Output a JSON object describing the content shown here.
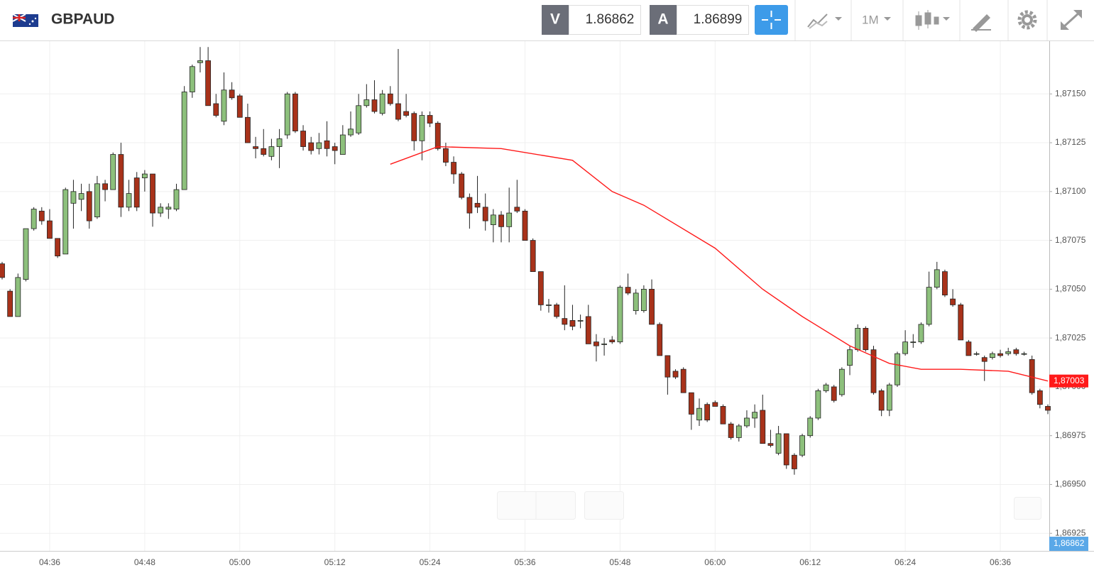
{
  "header": {
    "symbol": "GBPAUD",
    "bid_letter": "V",
    "bid": "1.86862",
    "ask_letter": "A",
    "ask": "1.86899",
    "timeframe": "1M"
  },
  "chart_data": {
    "type": "candlestick",
    "x": [
      "04:30",
      "04:31",
      "04:32",
      "04:33",
      "04:34",
      "04:35",
      "04:36",
      "04:37",
      "04:38",
      "04:39",
      "04:40",
      "04:41",
      "04:42",
      "04:43",
      "04:44",
      "04:45",
      "04:46",
      "04:47",
      "04:48",
      "04:49",
      "04:50",
      "04:51",
      "04:52",
      "04:53",
      "04:54",
      "04:55",
      "04:56",
      "04:57",
      "04:58",
      "04:59",
      "05:00",
      "05:01",
      "05:02",
      "05:03",
      "05:04",
      "05:05",
      "05:06",
      "05:07",
      "05:08",
      "05:09",
      "05:10",
      "05:11",
      "05:12",
      "05:13",
      "05:14",
      "05:15",
      "05:16",
      "05:17",
      "05:18",
      "05:19",
      "05:20",
      "05:21",
      "05:22",
      "05:23",
      "05:24",
      "05:25",
      "05:26",
      "05:27",
      "05:28",
      "05:29",
      "05:30",
      "05:31",
      "05:32",
      "05:33",
      "05:34",
      "05:35",
      "05:36",
      "05:37",
      "05:38",
      "05:39",
      "05:40",
      "05:41",
      "05:42",
      "05:43",
      "05:44",
      "05:45",
      "05:46",
      "05:47",
      "05:48",
      "05:49",
      "05:50",
      "05:51",
      "05:52",
      "05:53",
      "05:54",
      "05:55",
      "05:56",
      "05:57",
      "05:58",
      "05:59",
      "06:00",
      "06:01",
      "06:02",
      "06:03",
      "06:04",
      "06:05",
      "06:06",
      "06:07",
      "06:08",
      "06:09",
      "06:10",
      "06:11",
      "06:12",
      "06:13",
      "06:14",
      "06:15",
      "06:16",
      "06:17",
      "06:18",
      "06:19",
      "06:20",
      "06:21",
      "06:22",
      "06:23",
      "06:24",
      "06:25",
      "06:26",
      "06:27",
      "06:28",
      "06:29",
      "06:30",
      "06:31",
      "06:32",
      "06:33",
      "06:34",
      "06:35",
      "06:36",
      "06:37",
      "06:38",
      "06:39",
      "06:40",
      "06:41",
      "06:42"
    ],
    "open": [
      1.87063,
      1.87049,
      1.87036,
      1.87055,
      1.87081,
      1.8709,
      1.87085,
      1.87076,
      1.87068,
      1.87094,
      1.87096,
      1.871,
      1.87087,
      1.87104,
      1.87101,
      1.87119,
      1.87092,
      1.87107,
      1.87107,
      1.87109,
      1.87089,
      1.87091,
      1.87091,
      1.87101,
      1.87151,
      1.87166,
      1.87167,
      1.87145,
      1.87136,
      1.87152,
      1.87149,
      1.87138,
      1.87123,
      1.87122,
      1.87118,
      1.87123,
      1.87129,
      1.8715,
      1.87131,
      1.87125,
      1.87122,
      1.87126,
      1.87123,
      1.87119,
      1.87129,
      1.8713,
      1.87144,
      1.87147,
      1.8714,
      1.8715,
      1.87145,
      1.87141,
      1.8714,
      1.87126,
      1.87139,
      1.87135,
      1.87122,
      1.87115,
      1.87109,
      1.87097,
      1.87094,
      1.87092,
      1.87083,
      1.87088,
      1.87082,
      1.87092,
      1.8709,
      1.87075,
      1.87059,
      1.87042,
      1.87042,
      1.87035,
      1.87034,
      1.87034,
      1.87036,
      1.87023,
      1.87022,
      1.87024,
      1.87023,
      1.87051,
      1.87039,
      1.87039,
      1.8705,
      1.87032,
      1.87016,
      1.87008,
      1.87009,
      1.86997,
      1.86983,
      1.86991,
      1.86992,
      1.8699,
      1.86981,
      1.86974,
      1.8698,
      1.86984,
      1.86988,
      1.86971,
      1.86966,
      1.86976,
      1.86965,
      1.86965,
      1.86975,
      1.86984,
      1.86998,
      1.87,
      1.86996,
      1.87011,
      1.87019,
      1.8703,
      1.87019,
      1.86998,
      1.86988,
      1.87001,
      1.87017,
      1.87023,
      1.87023,
      1.87032,
      1.87051,
      1.87059,
      1.87045,
      1.87042,
      1.87023,
      1.87017,
      1.87015,
      1.87015,
      1.87017,
      1.87017,
      1.87019,
      1.87017,
      1.87014,
      1.86998,
      1.8699
    ],
    "high": [
      1.87064,
      1.8705,
      1.87058,
      1.87081,
      1.87092,
      1.87092,
      1.87091,
      1.87076,
      1.87102,
      1.87106,
      1.87104,
      1.87104,
      1.87108,
      1.87106,
      1.8712,
      1.87125,
      1.87106,
      1.8711,
      1.87111,
      1.87109,
      1.87094,
      1.87094,
      1.87104,
      1.87154,
      1.87165,
      1.87174,
      1.87174,
      1.8715,
      1.87161,
      1.87156,
      1.8715,
      1.87145,
      1.87128,
      1.87132,
      1.87127,
      1.87132,
      1.87151,
      1.87151,
      1.87134,
      1.87128,
      1.8713,
      1.87136,
      1.87125,
      1.87134,
      1.87141,
      1.8715,
      1.87155,
      1.87157,
      1.87152,
      1.87154,
      1.87173,
      1.8715,
      1.87141,
      1.87141,
      1.87141,
      1.87136,
      1.87125,
      1.87118,
      1.8711,
      1.87099,
      1.87108,
      1.87099,
      1.87091,
      1.8709,
      1.87102,
      1.87106,
      1.87091,
      1.87076,
      1.87059,
      1.87045,
      1.87043,
      1.87052,
      1.87042,
      1.87037,
      1.87042,
      1.87027,
      1.87025,
      1.87026,
      1.87052,
      1.87058,
      1.8705,
      1.87052,
      1.87055,
      1.87033,
      1.87016,
      1.87009,
      1.8701,
      1.86997,
      1.86994,
      1.86992,
      1.86993,
      1.86991,
      1.86982,
      1.86981,
      1.86988,
      1.86991,
      1.86996,
      1.86978,
      1.8698,
      1.86976,
      1.86966,
      1.86976,
      1.86985,
      1.86999,
      1.87002,
      1.87001,
      1.8701,
      1.87021,
      1.87032,
      1.87031,
      1.87021,
      1.86999,
      1.87002,
      1.87018,
      1.87029,
      1.87027,
      1.87033,
      1.87059,
      1.87064,
      1.8706,
      1.8705,
      1.87043,
      1.87024,
      1.87018,
      1.87016,
      1.87018,
      1.87019,
      1.8702,
      1.8702,
      1.87018,
      1.87016,
      1.86999,
      1.86991
    ],
    "low": [
      1.87055,
      1.87036,
      1.87036,
      1.87054,
      1.8708,
      1.87083,
      1.87076,
      1.87066,
      1.87068,
      1.87081,
      1.8709,
      1.87081,
      1.87086,
      1.87095,
      1.87101,
      1.87087,
      1.8709,
      1.8709,
      1.871,
      1.87082,
      1.87087,
      1.87086,
      1.8709,
      1.87101,
      1.87148,
      1.87161,
      1.87144,
      1.87138,
      1.87134,
      1.87147,
      1.87138,
      1.87125,
      1.87117,
      1.87118,
      1.87116,
      1.87112,
      1.87127,
      1.8713,
      1.87121,
      1.87119,
      1.87119,
      1.87118,
      1.87114,
      1.87119,
      1.87128,
      1.87129,
      1.87143,
      1.8714,
      1.87139,
      1.87144,
      1.87136,
      1.87138,
      1.87121,
      1.87116,
      1.87133,
      1.87121,
      1.87113,
      1.87104,
      1.87096,
      1.87081,
      1.87089,
      1.8708,
      1.87074,
      1.87074,
      1.87074,
      1.87089,
      1.87075,
      1.87059,
      1.87039,
      1.87038,
      1.87035,
      1.87029,
      1.87029,
      1.8703,
      1.87022,
      1.87013,
      1.87016,
      1.87022,
      1.87022,
      1.87047,
      1.87037,
      1.87038,
      1.87032,
      1.87016,
      1.86996,
      1.87004,
      1.86997,
      1.86978,
      1.8698,
      1.86982,
      1.8699,
      1.86981,
      1.86973,
      1.86972,
      1.86979,
      1.86979,
      1.86971,
      1.86969,
      1.86965,
      1.86958,
      1.86955,
      1.86964,
      1.86974,
      1.86983,
      1.86997,
      1.86992,
      1.86995,
      1.87006,
      1.87018,
      1.87018,
      1.86996,
      1.86985,
      1.86985,
      1.87,
      1.87016,
      1.8702,
      1.87022,
      1.87031,
      1.8705,
      1.87046,
      1.87041,
      1.87024,
      1.87016,
      1.87016,
      1.87003,
      1.87014,
      1.87015,
      1.87016,
      1.87016,
      1.87016,
      1.86996,
      1.86989,
      1.86986
    ],
    "close": [
      1.87056,
      1.87036,
      1.87056,
      1.87081,
      1.87091,
      1.87085,
      1.87076,
      1.87067,
      1.87101,
      1.871,
      1.87099,
      1.87085,
      1.87104,
      1.87101,
      1.87119,
      1.87092,
      1.87099,
      1.87092,
      1.87109,
      1.87089,
      1.87092,
      1.87092,
      1.87101,
      1.87151,
      1.87164,
      1.87167,
      1.87144,
      1.87139,
      1.87152,
      1.87148,
      1.87138,
      1.87125,
      1.87122,
      1.87119,
      1.87123,
      1.87127,
      1.8715,
      1.87131,
      1.87123,
      1.87121,
      1.87125,
      1.87122,
      1.87121,
      1.87129,
      1.87132,
      1.87144,
      1.87147,
      1.87141,
      1.8715,
      1.87145,
      1.87137,
      1.87139,
      1.87126,
      1.87139,
      1.87135,
      1.87122,
      1.87115,
      1.87109,
      1.87097,
      1.87089,
      1.87092,
      1.87085,
      1.87088,
      1.87082,
      1.87089,
      1.8709,
      1.87075,
      1.87059,
      1.87042,
      1.87042,
      1.87036,
      1.87032,
      1.87031,
      1.87034,
      1.87022,
      1.87021,
      1.87022,
      1.87023,
      1.87051,
      1.87048,
      1.87048,
      1.8705,
      1.87032,
      1.87016,
      1.87005,
      1.87005,
      1.86997,
      1.86986,
      1.86989,
      1.86983,
      1.8699,
      1.86981,
      1.86974,
      1.8698,
      1.86984,
      1.86987,
      1.86971,
      1.8697,
      1.86976,
      1.8696,
      1.86958,
      1.86975,
      1.86984,
      1.86998,
      1.87001,
      1.86993,
      1.87009,
      1.87019,
      1.8703,
      1.87019,
      1.86997,
      1.86988,
      1.87001,
      1.87017,
      1.87023,
      1.87023,
      1.87032,
      1.87051,
      1.8706,
      1.87047,
      1.87042,
      1.87024,
      1.87016,
      1.87017,
      1.87013,
      1.87017,
      1.87016,
      1.87018,
      1.87017,
      1.87017,
      1.86997,
      1.86991,
      1.86988
    ],
    "up_color": "#8dc07c",
    "down_color": "#a8321a",
    "ma": {
      "color": "#ff1a1a",
      "x": [
        "05:19",
        "05:25",
        "05:33",
        "05:42",
        "05:47",
        "05:51",
        "06:00",
        "06:06",
        "06:11",
        "06:17",
        "06:22",
        "06:26",
        "06:31",
        "06:37",
        "06:42"
      ],
      "values": [
        1.87114,
        1.87123,
        1.87122,
        1.87116,
        1.871,
        1.87093,
        1.87071,
        1.8705,
        1.87036,
        1.87021,
        1.87012,
        1.87009,
        1.87009,
        1.87008,
        1.87003
      ]
    },
    "ma_last_label": {
      "value": 1.87003,
      "label": "1,87003"
    },
    "bid_label": {
      "value": 1.86862,
      "label": "1,86862"
    },
    "ylim": [
      1.86916,
      1.87177
    ],
    "yticks": [
      {
        "value": 1.86925,
        "label": "1,86925"
      },
      {
        "value": 1.8695,
        "label": "1,86950"
      },
      {
        "value": 1.86975,
        "label": "1,86975"
      },
      {
        "value": 1.87,
        "label": "1,87000"
      },
      {
        "value": 1.87025,
        "label": "1,87025"
      },
      {
        "value": 1.8705,
        "label": "1,87050"
      },
      {
        "value": 1.87075,
        "label": "1,87075"
      },
      {
        "value": 1.871,
        "label": "1,87100"
      },
      {
        "value": 1.87125,
        "label": "1,87125"
      },
      {
        "value": 1.8715,
        "label": "1,87150"
      }
    ],
    "grid": true
  }
}
